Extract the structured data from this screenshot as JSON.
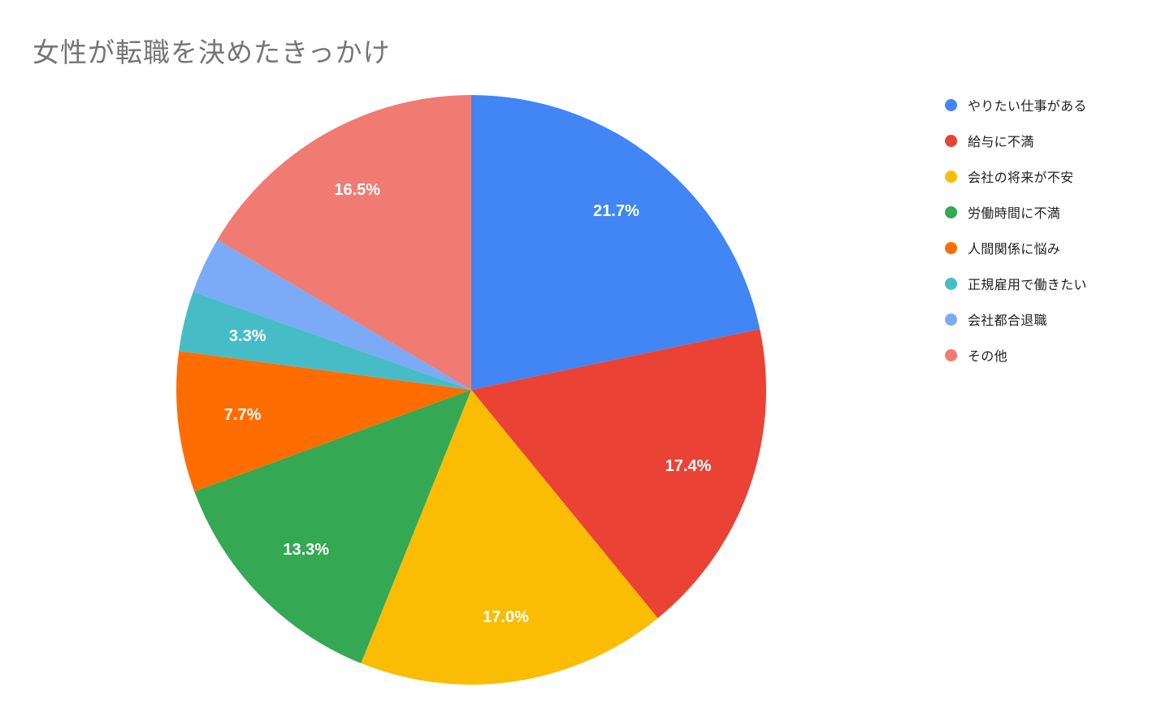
{
  "page": {
    "background_color": "#ffffff"
  },
  "chart_data": {
    "type": "pie",
    "title": "女性が転職を決めたきっかけ",
    "title_color": "#757575",
    "legend_position": "right",
    "slice_label_color": "#ffffff",
    "legend_text_color": "#212121",
    "slices": [
      {
        "label": "やりたい仕事がある",
        "value": 21.7,
        "pct_label": "21.7%",
        "label_shown": true,
        "color": "#4285F4"
      },
      {
        "label": "給与に不満",
        "value": 17.4,
        "pct_label": "17.4%",
        "label_shown": true,
        "color": "#EA4335"
      },
      {
        "label": "会社の将来が不安",
        "value": 17.0,
        "pct_label": "17.0%",
        "label_shown": true,
        "color": "#FBBC04"
      },
      {
        "label": "労働時間に不満",
        "value": 13.3,
        "pct_label": "13.3%",
        "label_shown": true,
        "color": "#34A853"
      },
      {
        "label": "人間関係に悩み",
        "value": 7.7,
        "pct_label": "7.7%",
        "label_shown": true,
        "color": "#FF6D01"
      },
      {
        "label": "正規雇用で働きたい",
        "value": 3.3,
        "pct_label": "3.3%",
        "label_shown": true,
        "color": "#46BDC6"
      },
      {
        "label": "会社都合退職",
        "value": 3.1,
        "pct_label": "",
        "label_shown": false,
        "color": "#7BAAF7"
      },
      {
        "label": "その他",
        "value": 16.5,
        "pct_label": "16.5%",
        "label_shown": true,
        "color": "#F07B72"
      }
    ]
  }
}
